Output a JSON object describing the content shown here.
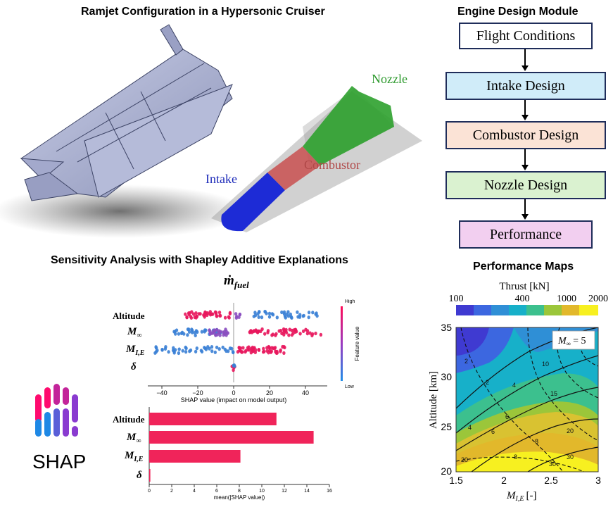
{
  "titles": {
    "ramjet": "Ramjet Configuration in a Hypersonic Cruiser",
    "engine_module": "Engine Design Module",
    "sensitivity": "Sensitivity Analysis with Shapley Additive Explanations",
    "performance_maps": "Performance Maps"
  },
  "engine_labels": {
    "nozzle": "Nozzle",
    "combustor": "Combustor",
    "intake": "Intake"
  },
  "flowchart": {
    "steps": [
      {
        "label": "Flight Conditions",
        "fill": "#ffffff"
      },
      {
        "label": "Intake Design",
        "fill": "#d0ecf9"
      },
      {
        "label": "Combustor Design",
        "fill": "#fbe3d6"
      },
      {
        "label": "Nozzle Design",
        "fill": "#daf2d0"
      },
      {
        "label": "Performance",
        "fill": "#f2cff0"
      }
    ]
  },
  "shap_logo": {
    "text": "SHAP"
  },
  "beeswarm": {
    "title": "ṁ",
    "title_sub": "fuel",
    "features": [
      "Altitude",
      "M",
      "M",
      "δ"
    ],
    "feature_subs": [
      "",
      "∞",
      "I,E",
      ""
    ],
    "x_ticks": [
      "−40",
      "−20",
      "0",
      "20",
      "40"
    ],
    "x_label": "SHAP value (impact on model output)",
    "colorbar": {
      "high": "High",
      "low": "Low",
      "label": "Feature value"
    },
    "colors": {
      "high": "#e8175d",
      "low": "#3a7fd5",
      "mid": "#8a4fc0"
    }
  },
  "bar_importance": {
    "features": [
      "Altitude",
      "M",
      "M",
      "δ"
    ],
    "feature_subs": [
      "",
      "∞",
      "I,E",
      ""
    ],
    "x_ticks": [
      "0",
      "2",
      "4",
      "6",
      "8",
      "10",
      "12",
      "14",
      "16"
    ],
    "x_label": "mean(|SHAP value|)",
    "color": "#f0245a"
  },
  "chart_data": {
    "type": "bar",
    "categories": [
      "Altitude",
      "M∞",
      "MI,E",
      "δ"
    ],
    "values": [
      11.3,
      14.6,
      8.1,
      0.1
    ],
    "xlabel": "mean(|SHAP value|)",
    "xlim": [
      0,
      16
    ]
  },
  "perf_map": {
    "colorbar_label": "Thrust [kN]",
    "colorbar_ticks": [
      "100",
      "400",
      "1000",
      "2000"
    ],
    "y_label": "Altitude [km]",
    "y_ticks": [
      "20",
      "25",
      "30",
      "35"
    ],
    "x_label": "M",
    "x_label_sub": "I,E",
    "x_label_unit": "[-]",
    "x_ticks": [
      "1.5",
      "2",
      "2.5",
      "3"
    ],
    "inset_label": "M",
    "inset_sub": "∞",
    "inset_value": "= 5",
    "contour_labels": [
      "2",
      "4",
      "6",
      "8",
      "10",
      "15",
      "20",
      "30",
      "2",
      "4",
      "6",
      "8",
      "20",
      "30"
    ]
  }
}
